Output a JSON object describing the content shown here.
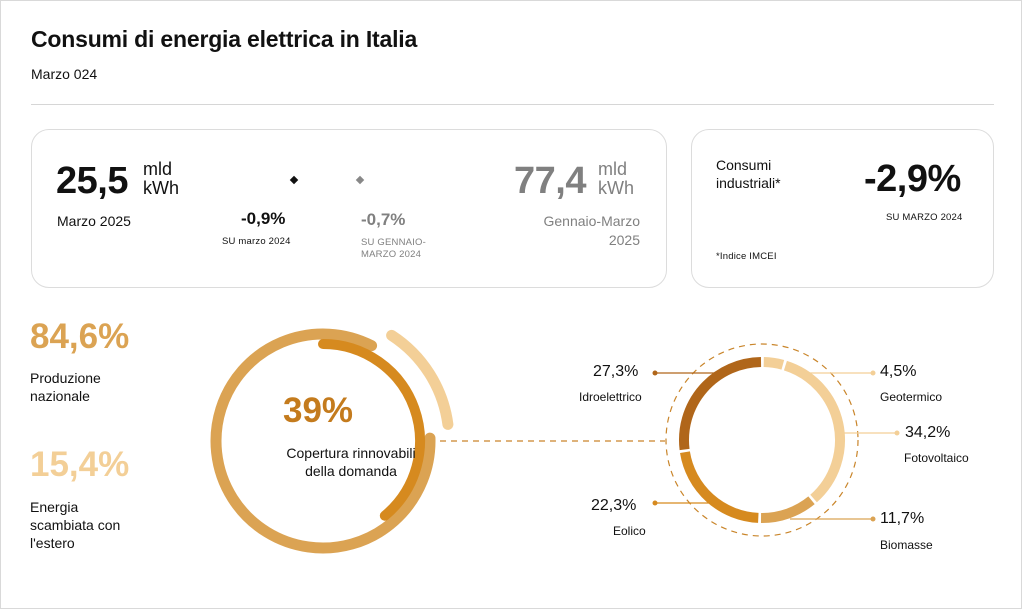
{
  "header": {
    "title": "Consumi di energia elettrica in Italia",
    "subtitle": "Marzo 024"
  },
  "monthly": {
    "value": "25,5",
    "unit": "mld kWh",
    "period": "Marzo 2025",
    "change": "-0,9%",
    "change_note": "SU marzo 2024"
  },
  "ytd": {
    "value": "77,4",
    "unit": "mld kWh",
    "period": "Gennaio-Marzo 2025",
    "change": "-0,7%",
    "change_note": "SU GENNAIO-MARZO 2024"
  },
  "industrial": {
    "label": "Consumi industriali*",
    "value": "-2,9%",
    "change_note": "SU MARZO 2024",
    "footnote": "*Indice IMCEI"
  },
  "supply": {
    "national_pct": "84,6%",
    "national_label": "Produzione nazionale",
    "foreign_pct": "15,4%",
    "foreign_label": "Energia scambiata con l'estero"
  },
  "renewables": {
    "coverage_pct": "39%",
    "coverage_label": "Copertura rinnovabili della domanda"
  },
  "colors": {
    "gold": "#dba353",
    "light_gold": "#f3cf97",
    "orange": "#d68a1f",
    "brown": "#b0661a",
    "gray": "#808080"
  },
  "chart_data": [
    {
      "type": "pie",
      "labels": [
        "Produzione nazionale",
        "Energia scambiata con l'estero"
      ],
      "values": [
        84.6,
        15.4
      ]
    },
    {
      "type": "pie",
      "labels": [
        "Copertura rinnovabili della domanda"
      ],
      "values": [
        39
      ]
    },
    {
      "type": "pie",
      "categories": [
        "Idroelettrico",
        "Geotermico",
        "Fotovoltaico",
        "Biomasse",
        "Eolico"
      ],
      "values": [
        27.3,
        4.5,
        34.2,
        11.7,
        22.3
      ],
      "labels": [
        "27,3%",
        "4,5%",
        "34,2%",
        "11,7%",
        "22,3%"
      ]
    }
  ]
}
